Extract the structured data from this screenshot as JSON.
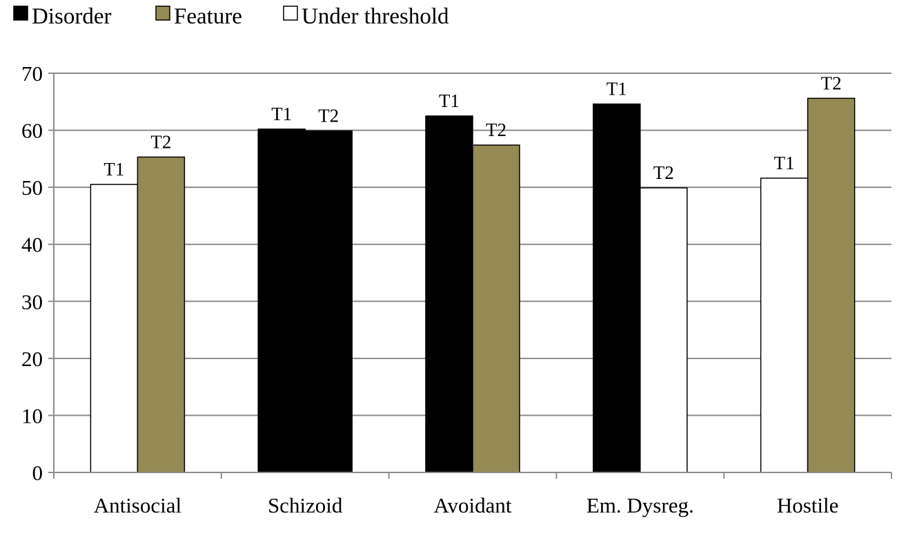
{
  "chart_data": {
    "type": "bar",
    "title": "",
    "xlabel": "",
    "ylabel": "",
    "ylim": [
      0,
      70
    ],
    "yticks": [
      0,
      10,
      20,
      30,
      40,
      50,
      60,
      70
    ],
    "grid": true,
    "legend_position": "top-left",
    "legend": [
      {
        "key": "disorder",
        "label": "Disorder",
        "color": "#000000"
      },
      {
        "key": "feature",
        "label": "Feature",
        "color": "#948a54"
      },
      {
        "key": "under",
        "label": "Under threshold",
        "color": "#ffffff"
      }
    ],
    "categories": [
      "Antisocial",
      "Schizoid",
      "Avoidant",
      "Em. Dysreg.",
      "Hostile"
    ],
    "series": [
      {
        "values": [
          50.5,
          60.2,
          62.5,
          64.6,
          51.6
        ],
        "status": [
          "under",
          "disorder",
          "disorder",
          "disorder",
          "under"
        ],
        "labels": [
          "T1",
          "T1",
          "T1",
          "T1",
          "T1"
        ]
      },
      {
        "values": [
          55.3,
          59.9,
          57.4,
          49.9,
          65.6
        ],
        "status": [
          "feature",
          "disorder",
          "feature",
          "under",
          "feature"
        ],
        "labels": [
          "T2",
          "T2",
          "T2",
          "T2",
          "T2"
        ]
      }
    ]
  }
}
